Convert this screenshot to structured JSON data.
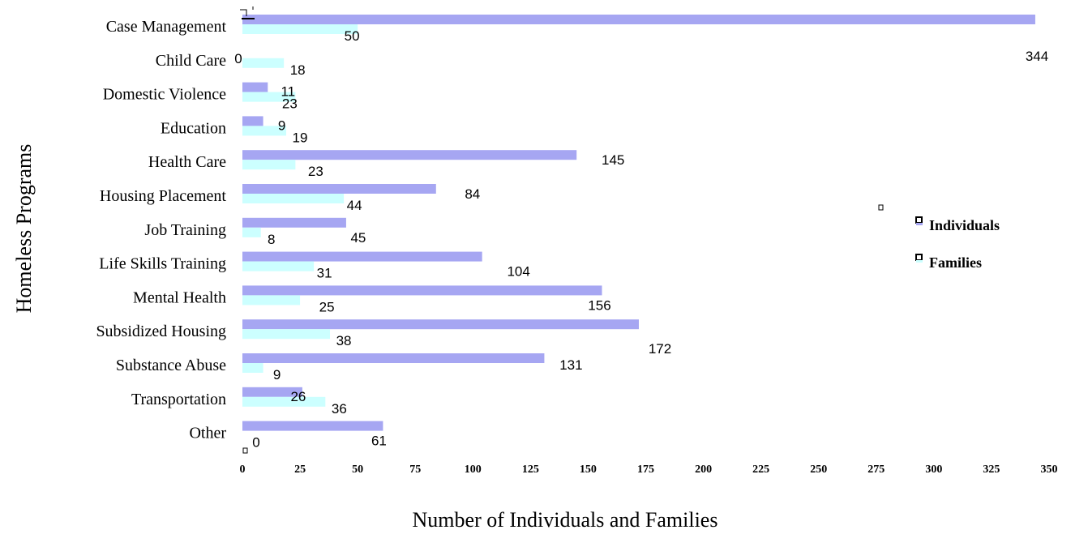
{
  "chart_data": {
    "type": "bar",
    "orientation": "horizontal",
    "categories": [
      "Case Management",
      "Child Care",
      "Domestic Violence",
      "Education",
      "Health Care",
      "Housing Placement",
      "Job Training",
      "Life Skills Training",
      "Mental Health",
      "Subsidized Housing",
      "Substance Abuse",
      "Transportation",
      "Other"
    ],
    "series": [
      {
        "name": "Individuals",
        "color": "#a6a6f2",
        "values": [
          344,
          0,
          11,
          9,
          145,
          84,
          45,
          104,
          156,
          172,
          131,
          26,
          61
        ]
      },
      {
        "name": "Families",
        "color": "#ccffff",
        "values": [
          50,
          18,
          23,
          19,
          23,
          44,
          8,
          31,
          25,
          38,
          9,
          36,
          0
        ]
      }
    ],
    "xlabel": "Number of Individuals and Families",
    "ylabel": "Homeless Programs",
    "xlim": [
      0,
      350
    ],
    "xticks": [
      "0",
      "25",
      "50",
      "75",
      "100",
      "125",
      "150",
      "175",
      "200",
      "225",
      "250",
      "275",
      "300",
      "325",
      "350"
    ],
    "grid": false,
    "legend": "right"
  }
}
